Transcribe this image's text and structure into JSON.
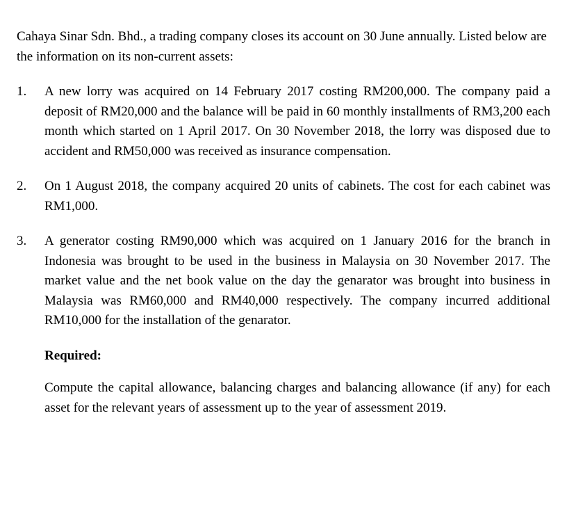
{
  "intro": "Cahaya Sinar Sdn. Bhd., a trading company closes its account on 30 June annually. Listed below are the information on its non-current assets:",
  "items": [
    {
      "num": "1.",
      "text": "A new lorry was acquired on 14 February 2017 costing RM200,000. The company paid a deposit of RM20,000 and the balance will be paid in 60 monthly installments of RM3,200 each month which started on 1 April 2017. On 30 November 2018, the lorry was disposed due to accident and RM50,000 was received as insurance compensation."
    },
    {
      "num": "2.",
      "text": "On 1 August 2018, the company acquired 20 units of cabinets. The cost for each cabinet was RM1,000."
    },
    {
      "num": "3.",
      "text": "A generator costing RM90,000 which was acquired on 1 January 2016 for the branch in Indonesia was brought to be used in the business in Malaysia on 30 November 2017. The market value and the net book value on the day the genarator was brought into business in Malaysia was RM60,000 and RM40,000 respectively. The company incurred additional RM10,000 for the installation of the genarator."
    }
  ],
  "required_label": "Required:",
  "required_text": "Compute the capital allowance, balancing charges and balancing allowance (if any) for each asset for the relevant years of assessment up to the year of assessment 2019."
}
